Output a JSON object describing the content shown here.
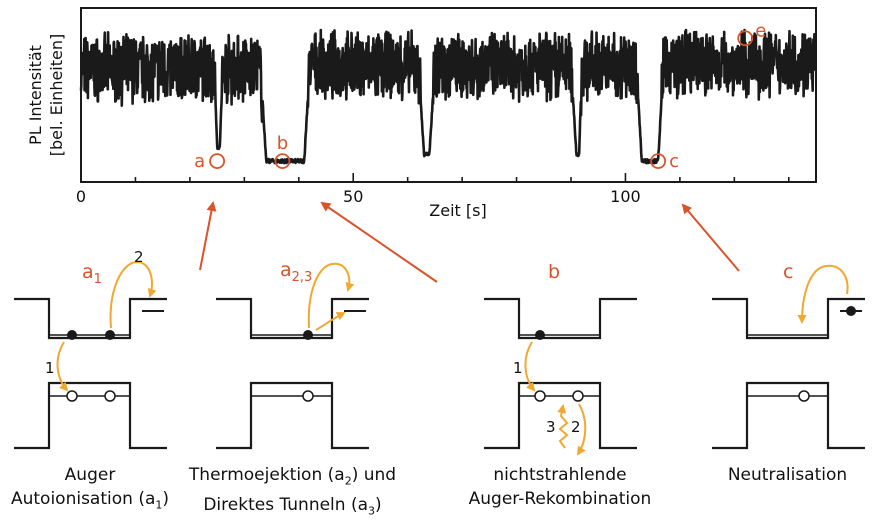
{
  "chart_data": {
    "type": "line",
    "ylabel_line1": "PL Intensität",
    "ylabel_line2": "[bel. Einheiten]",
    "xlabel": "Zeit [s]",
    "xlim": [
      0,
      135
    ],
    "x_ticks": [
      "0",
      "50",
      "100"
    ],
    "x_tick_values": [
      0,
      50,
      100
    ],
    "series": [
      {
        "x": [
          0,
          24.5,
          25,
          25.5,
          26,
          26.5,
          33,
          34,
          41,
          42,
          62,
          63,
          64,
          65,
          90,
          91,
          91.5,
          92,
          102,
          103,
          106,
          107,
          135
        ],
        "y": [
          0.72,
          0.72,
          0.15,
          0.15,
          0.7,
          0.72,
          0.72,
          0.05,
          0.05,
          0.74,
          0.74,
          0.1,
          0.1,
          0.74,
          0.74,
          0.1,
          0.1,
          0.74,
          0.74,
          0.05,
          0.05,
          0.76,
          0.76
        ]
      }
    ],
    "markers": [
      {
        "label": "a",
        "x": 25,
        "y": 0.05
      },
      {
        "label": "b",
        "x": 37,
        "y": 0.05
      },
      {
        "label": "c",
        "x": 106,
        "y": 0.05
      },
      {
        "label": "e",
        "x": 122,
        "y": 0.94
      }
    ]
  },
  "diagrams": {
    "d1": {
      "label": "a",
      "sub": "1",
      "step1": "1",
      "step2": "2",
      "caption_line1": "Auger",
      "caption_line2": "Autoionisation (a",
      "caption_line2_sub": "1",
      "caption_line2_end": ")"
    },
    "d2": {
      "label": "a",
      "sub": "2,3",
      "caption_line1_start": "Thermoejektion (a",
      "caption_line1_sub": "2",
      "caption_line1_end": ") und",
      "caption_line2_start": "Direktes Tunneln (a",
      "caption_line2_sub": "3",
      "caption_line2_end": ")"
    },
    "d3": {
      "label": "b",
      "step1": "1",
      "step2": "2",
      "step3": "3",
      "caption_line1": "nichtstrahlende",
      "caption_line2": "Auger-Rekombination"
    },
    "d4": {
      "label": "c",
      "caption_line1": "Neutralisation"
    }
  },
  "colors": {
    "accent": "#d9532b",
    "orange": "#f0a830",
    "ink": "#1a1a1a"
  }
}
